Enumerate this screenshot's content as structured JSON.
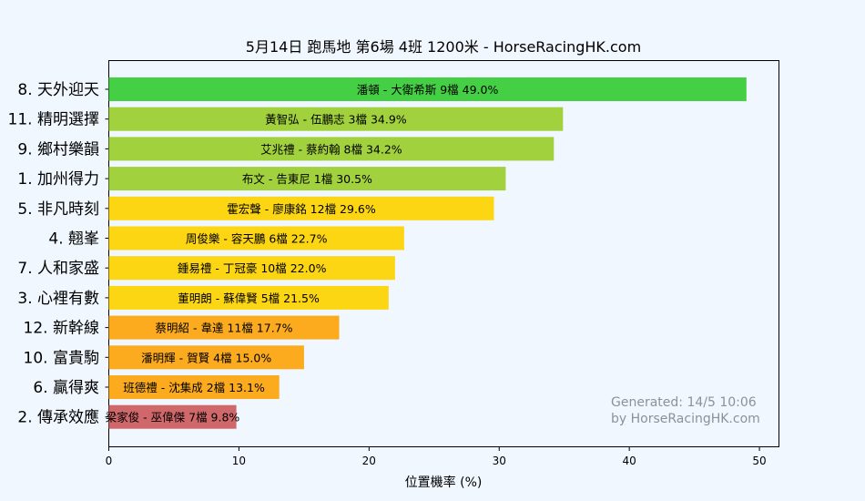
{
  "chart_data": {
    "type": "bar",
    "orientation": "horizontal",
    "title": "5月14日  跑馬地  第6場  4班  1200米 - HorseRacingHK.com",
    "xlabel": "位置機率 (%)",
    "ylabel": "",
    "xlim": [
      0,
      51.5
    ],
    "xticks": [
      "0",
      "10",
      "20",
      "30",
      "40",
      "50"
    ],
    "grid": false,
    "categories": [
      "8. 天外迎天",
      "11. 精明選擇",
      "9. 鄉村樂韻",
      "1. 加州得力",
      "5. 非凡時刻",
      "4. 翹峯",
      "7. 人和家盛",
      "3. 心裡有數",
      "12. 新幹線",
      "10. 富貴駒",
      "6. 贏得爽",
      "2. 傳承效應"
    ],
    "values": [
      49.0,
      34.9,
      34.2,
      30.5,
      29.6,
      22.7,
      22.0,
      21.5,
      17.7,
      15.0,
      13.1,
      9.8
    ],
    "bar_labels": [
      "潘頓 - 大衛希斯 9檔  49.0%",
      "黃智弘 - 伍鵬志 3檔  34.9%",
      "艾兆禮 - 蔡約翰 8檔  34.2%",
      "布文 - 告東尼 1檔  30.5%",
      "霍宏聲 - 廖康銘 12檔  29.6%",
      "周俊樂 - 容天鵬 6檔  22.7%",
      "鍾易禮 - 丁冠豪 10檔  22.0%",
      "董明朗 - 蘇偉賢 5檔  21.5%",
      "蔡明紹 - 韋達 11檔  17.7%",
      "潘明輝 - 賀賢 4檔  15.0%",
      "班德禮 - 沈集成 2檔  13.1%",
      "梁家俊 - 巫偉傑 7檔  9.8%"
    ],
    "colors": [
      "#44cf44",
      "#a2d13e",
      "#a2d13e",
      "#a2d13e",
      "#fcd613",
      "#fcd613",
      "#fcd613",
      "#fcd613",
      "#fcab1f",
      "#fcab1f",
      "#fcab1f",
      "#d0676a"
    ],
    "watermark": [
      "Generated: 14/5 10:06",
      "by HorseRacingHK.com"
    ]
  }
}
